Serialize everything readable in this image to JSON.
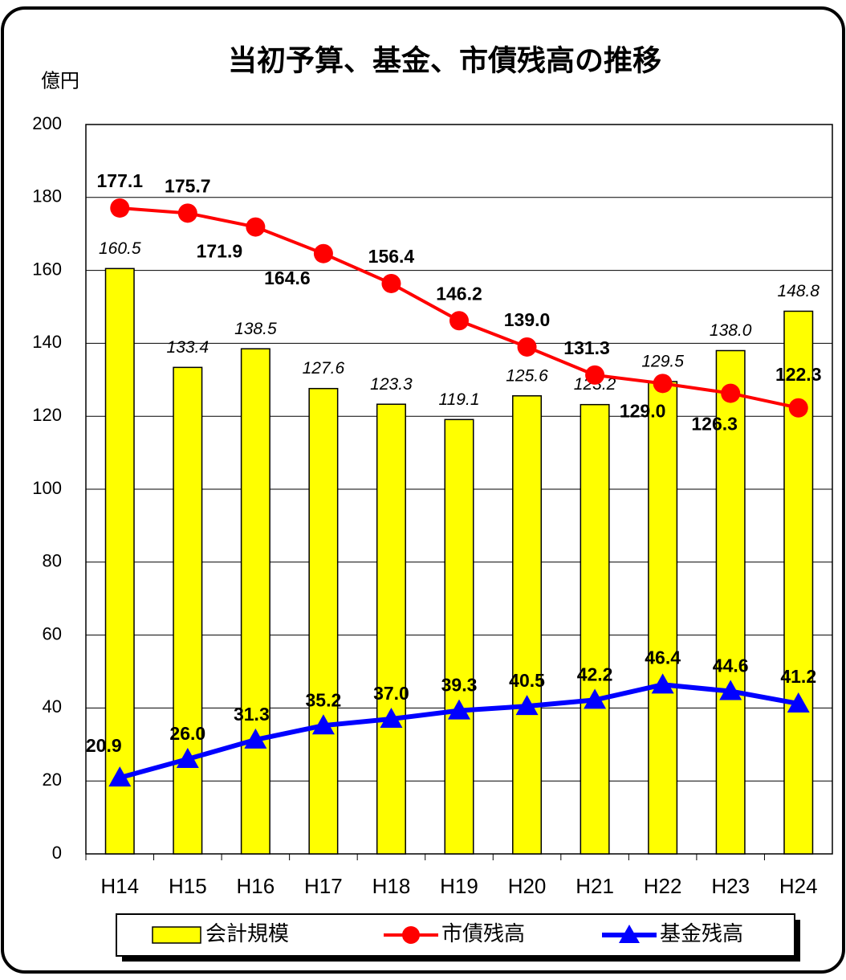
{
  "chart_data": {
    "type": "bar-line",
    "title": "当初予算、基金、市債残高の推移",
    "y_unit": "億円",
    "categories": [
      "H14",
      "H15",
      "H16",
      "H17",
      "H18",
      "H19",
      "H20",
      "H21",
      "H22",
      "H23",
      "H24"
    ],
    "ylim": [
      0,
      200
    ],
    "yticks": [
      0,
      20,
      40,
      60,
      80,
      100,
      120,
      140,
      160,
      180,
      200
    ],
    "grid": true,
    "series": [
      {
        "name": "会計規模",
        "type": "bar",
        "color": "#ffff00",
        "values": [
          160.5,
          133.4,
          138.5,
          127.6,
          123.3,
          119.1,
          125.6,
          123.2,
          129.5,
          138.0,
          148.8
        ],
        "value_labels": [
          "160.5",
          "133.4",
          "138.5",
          "127.6",
          "123.3",
          "119.1",
          "125.6",
          "123.2",
          "129.5",
          "138.0",
          "148.8"
        ]
      },
      {
        "name": "市債残高",
        "type": "line",
        "marker": "circle",
        "color": "#ff0000",
        "values": [
          177.1,
          175.7,
          171.9,
          164.6,
          156.4,
          146.2,
          139.0,
          131.3,
          129.0,
          126.3,
          122.3
        ],
        "value_labels": [
          "177.1",
          "175.7",
          "171.9",
          "164.6",
          "156.4",
          "146.2",
          "139.0",
          "131.3",
          "129.0",
          "126.3",
          "122.3"
        ]
      },
      {
        "name": "基金残高",
        "type": "line",
        "marker": "triangle",
        "color": "#0000ff",
        "values": [
          20.9,
          26.0,
          31.3,
          35.2,
          37.0,
          39.3,
          40.5,
          42.2,
          46.4,
          44.6,
          41.2
        ],
        "value_labels": [
          "20.9",
          "26.0",
          "31.3",
          "35.2",
          "37.0",
          "39.3",
          "40.5",
          "42.2",
          "46.4",
          "44.6",
          "41.2"
        ]
      }
    ]
  }
}
